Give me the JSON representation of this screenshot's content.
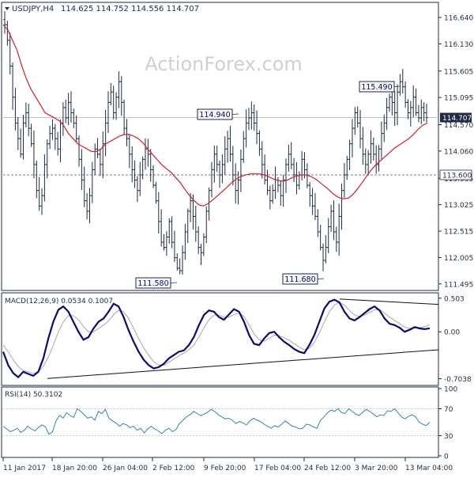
{
  "header": {
    "symbol_info": "USDJPY,H4",
    "ohlc": "114.625 114.752 114.556 114.707"
  },
  "watermark": "ActionForex.com",
  "colors": {
    "candle": "#1f2a44",
    "ma": "#d4202a",
    "macd_line": "#0a0a7a",
    "macd_signal": "#a8a8a8",
    "rsi": "#2f86b8",
    "axis": "#1f2a44",
    "label_box_bg": "#f8f8fb",
    "label_box_border": "#1f2a44"
  },
  "chart_data": [
    {
      "type": "candlestick",
      "name": "price",
      "y_ticks": [
        "116.640",
        "116.130",
        "115.605",
        "115.095",
        "114.570",
        "114.060",
        "113.535",
        "113.025",
        "112.515",
        "112.005",
        "111.495"
      ],
      "ylim": [
        111.4,
        116.9
      ],
      "x_ticks": [
        "11 Jan 2017",
        "18 Jan 20:00",
        "26 Jan 04:00",
        "2 Feb 12:00",
        "9 Feb 20:00",
        "17 Feb 04:00",
        "24 Feb 12:00",
        "3 Mar 20:00",
        "13 Mar 04:00"
      ],
      "closes": [
        116.5,
        116.2,
        115.7,
        115.1,
        114.6,
        114.3,
        114.0,
        114.6,
        114.8,
        114.5,
        114.2,
        113.8,
        113.3,
        113.0,
        113.2,
        113.8,
        114.2,
        114.4,
        114.5,
        114.3,
        114.1,
        114.6,
        114.9,
        114.7,
        115.0,
        114.8,
        114.6,
        114.3,
        113.9,
        113.5,
        113.1,
        112.9,
        113.2,
        113.7,
        114.1,
        114.0,
        113.8,
        114.2,
        114.6,
        115.0,
        115.2,
        114.8,
        115.1,
        115.4,
        115.0,
        114.5,
        114.3,
        114.0,
        113.7,
        113.5,
        113.3,
        113.6,
        113.9,
        114.1,
        114.0,
        113.7,
        113.4,
        113.1,
        112.7,
        112.3,
        112.2,
        112.4,
        112.7,
        112.3,
        112.0,
        111.8,
        111.75,
        112.1,
        112.5,
        112.9,
        113.1,
        112.8,
        112.5,
        112.2,
        112.1,
        112.4,
        112.9,
        113.3,
        113.7,
        114.0,
        113.8,
        113.6,
        113.8,
        114.1,
        114.3,
        114.0,
        113.6,
        113.3,
        113.5,
        113.9,
        114.3,
        114.6,
        114.7,
        114.8,
        114.6,
        114.4,
        114.1,
        113.8,
        113.5,
        113.3,
        113.1,
        113.3,
        113.5,
        113.4,
        113.2,
        113.5,
        113.8,
        114.0,
        113.8,
        113.6,
        113.4,
        113.6,
        113.9,
        113.7,
        113.4,
        113.2,
        113.0,
        112.8,
        112.5,
        112.2,
        111.95,
        112.2,
        112.6,
        112.9,
        112.5,
        112.3,
        112.8,
        113.3,
        113.6,
        113.9,
        114.2,
        114.5,
        114.8,
        114.6,
        114.3,
        114.0,
        113.8,
        114.0,
        114.2,
        114.0,
        113.8,
        114.1,
        114.4,
        114.6,
        114.9,
        115.1,
        115.0,
        114.8,
        115.2,
        115.4,
        115.3,
        115.0,
        114.8,
        114.9,
        115.1,
        114.8,
        114.7,
        114.9,
        114.8,
        114.707
      ],
      "ma": [
        116.5,
        116.4,
        116.2,
        116.0,
        115.7,
        115.45,
        115.25,
        115.1,
        114.95,
        114.8,
        114.75,
        114.7,
        114.65,
        114.55,
        114.4,
        114.3,
        114.2,
        114.15,
        114.1,
        114.05,
        114.05,
        114.1,
        114.2,
        114.25,
        114.3,
        114.35,
        114.38,
        114.38,
        114.35,
        114.3,
        114.22,
        114.1,
        114.0,
        113.9,
        113.8,
        113.72,
        113.65,
        113.55,
        113.45,
        113.32,
        113.2,
        113.1,
        113.02,
        113.0,
        113.05,
        113.12,
        113.2,
        113.28,
        113.36,
        113.45,
        113.52,
        113.57,
        113.6,
        113.62,
        113.62,
        113.62,
        113.6,
        113.56,
        113.52,
        113.49,
        113.48,
        113.5,
        113.55,
        113.58,
        113.6,
        113.6,
        113.57,
        113.52,
        113.45,
        113.38,
        113.3,
        113.22,
        113.16,
        113.14,
        113.15,
        113.22,
        113.33,
        113.45,
        113.58,
        113.7,
        113.8,
        113.88,
        113.96,
        114.04,
        114.12,
        114.18,
        114.24,
        114.3,
        114.38,
        114.48,
        114.56,
        114.6
      ],
      "level_labels": [
        "114.940",
        "115.490",
        "111.580",
        "111.680"
      ],
      "support_level": "113.600",
      "support_value": 113.6,
      "current_value": 114.707,
      "current_label": "114.707"
    },
    {
      "type": "line",
      "name": "macd",
      "title": "MACD(12,26,9) 0.0534 0.1007",
      "y_ticks": [
        "0.503",
        "0.00",
        "-0.7038"
      ],
      "ylim": [
        -0.78,
        0.56
      ],
      "macd": [
        -0.3,
        -0.5,
        -0.62,
        -0.68,
        -0.6,
        -0.63,
        -0.66,
        -0.6,
        -0.4,
        -0.1,
        0.15,
        0.33,
        0.38,
        0.3,
        0.15,
        0.0,
        -0.12,
        -0.08,
        0.05,
        0.15,
        0.2,
        0.3,
        0.42,
        0.38,
        0.22,
        0.02,
        -0.15,
        -0.3,
        -0.42,
        -0.5,
        -0.55,
        -0.53,
        -0.48,
        -0.4,
        -0.35,
        -0.3,
        -0.28,
        -0.2,
        -0.08,
        0.1,
        0.25,
        0.32,
        0.3,
        0.22,
        0.18,
        0.26,
        0.34,
        0.3,
        0.15,
        -0.05,
        -0.18,
        -0.2,
        -0.1,
        -0.02,
        0.0,
        -0.08,
        -0.15,
        -0.2,
        -0.26,
        -0.3,
        -0.32,
        -0.2,
        -0.05,
        0.15,
        0.35,
        0.45,
        0.48,
        0.44,
        0.3,
        0.2,
        0.17,
        0.22,
        0.28,
        0.34,
        0.38,
        0.32,
        0.2,
        0.12,
        0.1,
        0.06,
        0.0,
        0.03,
        0.07,
        0.05,
        0.04,
        0.053
      ],
      "signal": [
        -0.2,
        -0.3,
        -0.42,
        -0.52,
        -0.58,
        -0.6,
        -0.62,
        -0.6,
        -0.52,
        -0.38,
        -0.2,
        0.0,
        0.15,
        0.24,
        0.24,
        0.18,
        0.08,
        0.0,
        0.0,
        0.05,
        0.1,
        0.16,
        0.26,
        0.32,
        0.3,
        0.2,
        0.05,
        -0.1,
        -0.24,
        -0.35,
        -0.45,
        -0.5,
        -0.5,
        -0.46,
        -0.41,
        -0.36,
        -0.32,
        -0.27,
        -0.2,
        -0.08,
        0.06,
        0.18,
        0.25,
        0.25,
        0.22,
        0.22,
        0.26,
        0.28,
        0.23,
        0.1,
        -0.03,
        -0.12,
        -0.14,
        -0.1,
        -0.05,
        -0.06,
        -0.09,
        -0.13,
        -0.18,
        -0.23,
        -0.27,
        -0.25,
        -0.16,
        -0.02,
        0.15,
        0.3,
        0.4,
        0.44,
        0.4,
        0.32,
        0.25,
        0.23,
        0.25,
        0.29,
        0.33,
        0.33,
        0.28,
        0.22,
        0.17,
        0.12,
        0.07,
        0.05,
        0.06,
        0.06,
        0.08,
        0.1007
      ]
    },
    {
      "type": "line",
      "name": "rsi",
      "title": "RSI(14) 50.3102",
      "y_ticks": [
        "100",
        "70",
        "30",
        "0"
      ],
      "ylim": [
        0,
        100
      ],
      "values": [
        44,
        40,
        36,
        38,
        41,
        35,
        38,
        44,
        40,
        37,
        42,
        46,
        43,
        32,
        36,
        52,
        60,
        56,
        64,
        60,
        57,
        70,
        66,
        61,
        56,
        58,
        53,
        66,
        63,
        69,
        56,
        52,
        49,
        44,
        48,
        46,
        42,
        44,
        38,
        41,
        34,
        40,
        44,
        40,
        37,
        33,
        38,
        41,
        36,
        39,
        48,
        53,
        58,
        61,
        66,
        63,
        60,
        62,
        65,
        69,
        66,
        61,
        58,
        55,
        56,
        53,
        48,
        51,
        49,
        46,
        52,
        56,
        53,
        51,
        47,
        44,
        41,
        45,
        43,
        47,
        52,
        48,
        44,
        43,
        40,
        41,
        47,
        46,
        43,
        41,
        53,
        58,
        64,
        68,
        66,
        70,
        64,
        63,
        70,
        66,
        62,
        60,
        65,
        69,
        66,
        62,
        58,
        61,
        60,
        67,
        66,
        70,
        64,
        58,
        55,
        59,
        61,
        58,
        50,
        47,
        45,
        50
      ],
      "levels": [
        70,
        30
      ]
    }
  ]
}
